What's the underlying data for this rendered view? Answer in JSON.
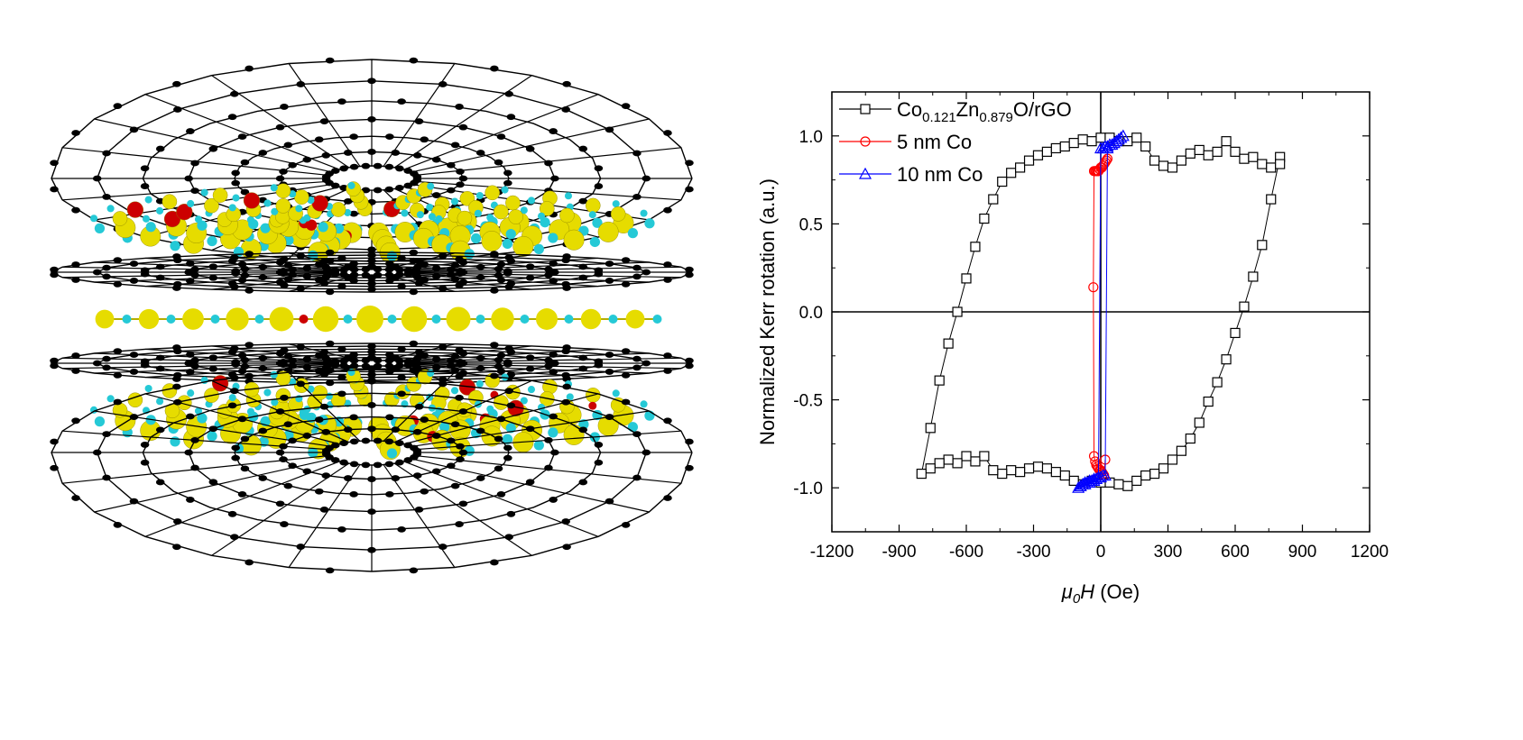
{
  "illustration": {
    "description_icon": "graphene-zno-layered-structure-icon",
    "colors": {
      "carbon": "#000000",
      "zinc": "#e6dc00",
      "oxygen": "#25c9d6",
      "cobalt": "#cc0000",
      "bond": "#000000"
    }
  },
  "legend": {
    "entries": [
      {
        "parts": [
          [
            "Co",
            ""
          ],
          [
            "0.121",
            "sub"
          ],
          [
            "Zn",
            ""
          ],
          [
            "0.879",
            "sub"
          ],
          [
            "O/rGO",
            ""
          ]
        ],
        "color": "#000000",
        "marker": "square"
      },
      {
        "parts": [
          [
            "5 nm Co",
            ""
          ]
        ],
        "color": "#ff0000",
        "marker": "circle"
      },
      {
        "parts": [
          [
            "10 nm Co",
            ""
          ]
        ],
        "color": "#0000ff",
        "marker": "triangle"
      }
    ]
  },
  "axes": {
    "x_label_italic": "μ0H",
    "x_label_italic_main": "μ",
    "x_label_italic_sub": "0",
    "x_label_italic_H": "H",
    "x_label_unit": " (Oe)",
    "y_label": "Normalized Kerr rotation (a.u.)"
  },
  "chart_data": {
    "type": "line",
    "xlabel": "μ0H (Oe)",
    "ylabel": "Normalized Kerr rotation (a.u.)",
    "xlim": [
      -1200,
      1200
    ],
    "ylim": [
      -1.25,
      1.25
    ],
    "x_ticks": [
      -1200,
      -900,
      -600,
      -300,
      0,
      300,
      600,
      900,
      1200
    ],
    "x_tick_labels": [
      "-1200",
      "-900",
      "-600",
      "-300",
      "0",
      "300",
      "600",
      "900",
      "1200"
    ],
    "y_ticks": [
      -1.0,
      -0.5,
      0.0,
      0.5,
      1.0
    ],
    "y_tick_labels": [
      "-1.0",
      "-0.5",
      "0.0",
      "0.5",
      "1.0"
    ],
    "grid": false,
    "legend_position": "top-left",
    "series": [
      {
        "name": "Co0.121Zn0.879O/rGO",
        "color": "#000000",
        "marker": "square",
        "x": [
          800,
          760,
          720,
          680,
          640,
          600,
          560,
          520,
          480,
          440,
          400,
          360,
          320,
          280,
          240,
          200,
          160,
          120,
          80,
          40,
          0,
          -40,
          -80,
          -120,
          -160,
          -200,
          -240,
          -280,
          -320,
          -360,
          -400,
          -440,
          -480,
          -520,
          -560,
          -600,
          -640,
          -680,
          -720,
          -760,
          -800,
          -760,
          -720,
          -680,
          -640,
          -600,
          -560,
          -520,
          -480,
          -440,
          -400,
          -360,
          -320,
          -280,
          -240,
          -200,
          -160,
          -120,
          -80,
          -40,
          0,
          40,
          80,
          120,
          160,
          200,
          240,
          280,
          320,
          360,
          400,
          440,
          480,
          520,
          560,
          600,
          640,
          680,
          720,
          760,
          800
        ],
        "y": [
          0.88,
          0.64,
          0.38,
          0.2,
          0.03,
          -0.12,
          -0.27,
          -0.4,
          -0.51,
          -0.63,
          -0.72,
          -0.79,
          -0.84,
          -0.89,
          -0.92,
          -0.93,
          -0.96,
          -0.99,
          -0.98,
          -0.97,
          -0.97,
          -0.96,
          -0.98,
          -0.96,
          -0.93,
          -0.91,
          -0.89,
          -0.88,
          -0.89,
          -0.91,
          -0.9,
          -0.92,
          -0.9,
          -0.82,
          -0.85,
          -0.82,
          -0.86,
          -0.84,
          -0.86,
          -0.89,
          -0.92,
          -0.66,
          -0.39,
          -0.18,
          0.0,
          0.19,
          0.37,
          0.53,
          0.64,
          0.74,
          0.79,
          0.82,
          0.86,
          0.89,
          0.91,
          0.93,
          0.94,
          0.96,
          0.98,
          0.97,
          0.99,
          0.99,
          0.97,
          0.97,
          0.99,
          0.94,
          0.86,
          0.83,
          0.82,
          0.86,
          0.9,
          0.92,
          0.89,
          0.91,
          0.97,
          0.91,
          0.87,
          0.88,
          0.84,
          0.82,
          0.84
        ]
      },
      {
        "name": "5 nm Co",
        "color": "#ff0000",
        "marker": "circle",
        "x": [
          30,
          25,
          20,
          15,
          10,
          5,
          0,
          -5,
          -10,
          -15,
          -20,
          -25,
          -30,
          -33,
          -30,
          -25,
          -20,
          -15,
          -10,
          -5,
          0,
          5,
          10,
          15,
          20
        ],
        "y": [
          0.87,
          0.86,
          0.85,
          0.84,
          0.83,
          0.82,
          0.82,
          0.81,
          0.8,
          0.8,
          0.8,
          0.8,
          0.8,
          0.14,
          -0.82,
          -0.85,
          -0.87,
          -0.88,
          -0.89,
          -0.9,
          -0.9,
          -0.91,
          -0.92,
          -0.93,
          -0.84
        ]
      },
      {
        "name": "10 nm Co",
        "color": "#0000ff",
        "marker": "triangle",
        "x": [
          100,
          90,
          80,
          70,
          60,
          50,
          40,
          30,
          20,
          10,
          0,
          -10,
          -20,
          -30,
          -40,
          -50,
          -60,
          -70,
          -80,
          -90,
          -100,
          -90,
          -80,
          -70,
          -60,
          -50,
          -40,
          -30,
          -20,
          -10,
          0,
          10,
          20,
          30
        ],
        "y": [
          1.0,
          0.99,
          0.98,
          0.97,
          0.96,
          0.95,
          0.95,
          0.94,
          0.94,
          0.93,
          0.93,
          -0.94,
          -0.95,
          -0.96,
          -0.96,
          -0.97,
          -0.97,
          -0.98,
          -0.98,
          -0.99,
          -1.0,
          -0.99,
          -0.98,
          -0.97,
          -0.97,
          -0.96,
          -0.96,
          -0.95,
          -0.95,
          -0.94,
          -0.94,
          -0.93,
          -0.93,
          0.93
        ]
      }
    ]
  }
}
